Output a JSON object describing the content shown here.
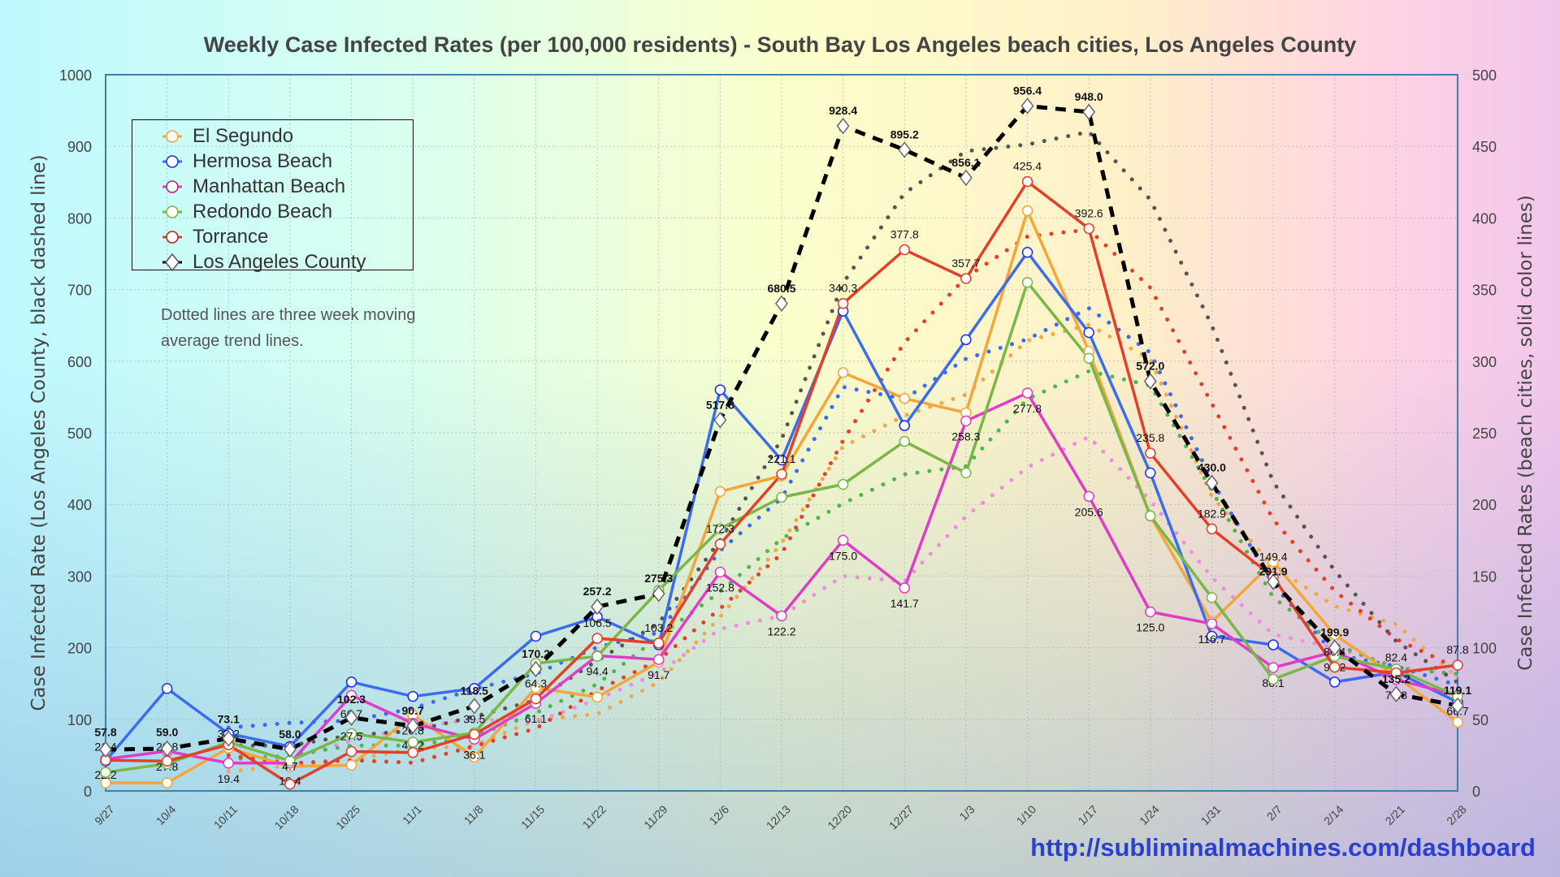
{
  "title": "Weekly Case Infected Rates (per 100,000 residents) - South Bay Los Angeles beach cities, Los Angeles County",
  "note": "Dotted lines are three week moving average trend lines.",
  "url": "http://subliminalmachines.com/dashboard",
  "chart_data": {
    "type": "line",
    "title": "Weekly Case Infected Rates (per 100,000 residents) - South Bay Los Angeles beach cities, Los Angeles County",
    "ylabel_left": "Case Infected Rate (Los Angeles County, black dashed line)",
    "ylabel_right": "Case Infected Rates (beach cities, solid color lines)",
    "ylim_left": [
      0,
      1000
    ],
    "ylim_right": [
      0,
      500
    ],
    "yticks_left": [
      "0",
      "100",
      "200",
      "300",
      "400",
      "500",
      "600",
      "700",
      "800",
      "900",
      "1000"
    ],
    "yticks_right": [
      "0",
      "50",
      "100",
      "150",
      "200",
      "250",
      "300",
      "350",
      "400",
      "450",
      "500"
    ],
    "grid": true,
    "legend_position": "top-left",
    "trend": "three week moving average (dotted)",
    "categories": [
      "9/27",
      "10/4",
      "10/11",
      "10/18",
      "10/25",
      "11/1",
      "11/8",
      "11/15",
      "11/22",
      "11/29",
      "12/6",
      "12/13",
      "12/20",
      "12/27",
      "1/3",
      "1/10",
      "1/17",
      "1/24",
      "1/31",
      "2/7",
      "2/14",
      "2/21",
      "2/28"
    ],
    "series": [
      {
        "name": "El Segundo",
        "axis": "right",
        "color": "#f4a63a",
        "trend_color": "#f0a848",
        "labeled": false,
        "values": [
          5.6,
          5.6,
          30,
          17,
          18,
          53,
          23.6,
          72,
          65.5,
          90,
          209,
          220,
          292,
          274,
          264,
          405,
          307,
          192,
          118,
          160,
          109,
          80,
          48
        ]
      },
      {
        "name": "Hermosa Beach",
        "axis": "right",
        "color": "#3b6cf0",
        "trend_color": "#3b6cf0",
        "labeled": false,
        "values": [
          21,
          71.5,
          40,
          31,
          76,
          66,
          71.5,
          108,
          121.5,
          102,
          280,
          231,
          335,
          255,
          315,
          376,
          320,
          222,
          108,
          102,
          76,
          83,
          62
        ]
      },
      {
        "name": "Manhattan Beach",
        "axis": "right",
        "color": "#e03cc8",
        "trend_color": "#ee8ee0",
        "labeled": true,
        "label_pos": "below",
        "values": [
          22.2,
          27.8,
          19.4,
          19.4,
          66.7,
          47.2,
          36.1,
          61.1,
          94.4,
          91.7,
          152.8,
          122.2,
          175.0,
          141.7,
          258.3,
          277.8,
          205.6,
          125.0,
          116.7,
          86.1,
          97.2,
          77.8,
          66.7
        ]
      },
      {
        "name": "Redondo Beach",
        "axis": "right",
        "color": "#7ab648",
        "trend_color": "#4cb848",
        "labeled": false,
        "values": [
          13,
          19,
          34,
          21,
          40,
          34,
          40.5,
          89,
          94,
          140,
          183,
          205,
          214,
          244,
          222,
          355,
          302,
          192,
          135,
          78,
          94,
          85,
          66
        ]
      },
      {
        "name": "Torrance",
        "axis": "right",
        "color": "#e2402a",
        "trend_color": "#e2402a",
        "labeled": true,
        "label_pos": "above",
        "values": [
          21.4,
          20.8,
          32.2,
          4.7,
          27.5,
          26.8,
          39.5,
          64.3,
          106.5,
          103.2,
          172.3,
          221.1,
          340.3,
          377.8,
          357.7,
          425.4,
          392.6,
          235.8,
          182.9,
          149.4,
          86.4,
          82.4,
          87.8
        ]
      },
      {
        "name": "Los Angeles County",
        "axis": "left",
        "color": "#000000",
        "trend_color": "#555555",
        "labeled": true,
        "label_pos": "above",
        "values": [
          57.8,
          59.0,
          73.1,
          58.0,
          102.3,
          90.7,
          118.5,
          170.2,
          257.2,
          275.3,
          517.8,
          680.5,
          928.4,
          895.2,
          856.1,
          956.4,
          948.0,
          572.0,
          430.0,
          291.9,
          199.9,
          135.2,
          119.1
        ]
      }
    ]
  }
}
